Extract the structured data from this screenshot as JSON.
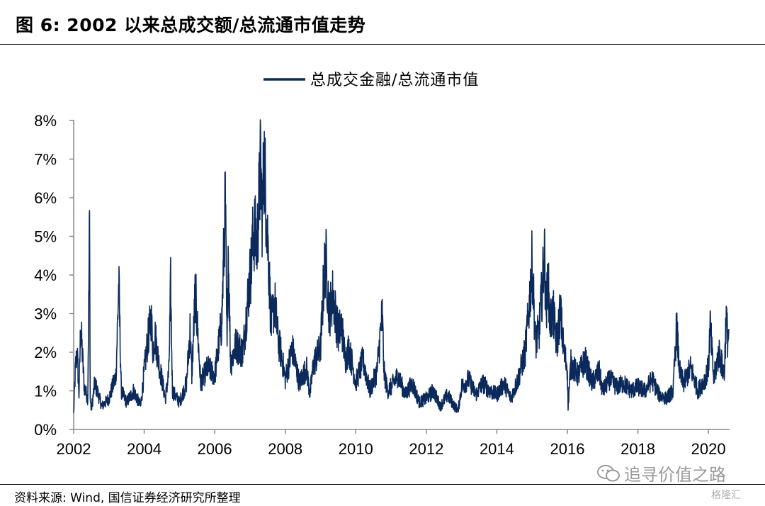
{
  "header": {
    "title": "图  6:  2002 以来总成交额/总流通市值走势"
  },
  "footer": {
    "source": "资料来源: Wind, 国信证券经济研究所整理"
  },
  "watermark": {
    "text": "追寻价值之路",
    "brand": "格隆汇"
  },
  "chart_data": {
    "type": "line",
    "legend_position": "top-center",
    "grid": false,
    "xlim": [
      2002,
      2020.6
    ],
    "ylim": [
      0,
      8
    ],
    "x_ticks": [
      "2002",
      "2004",
      "2006",
      "2008",
      "2010",
      "2012",
      "2014",
      "2016",
      "2018",
      "2020"
    ],
    "y_ticks": [
      "0%",
      "1%",
      "2%",
      "3%",
      "4%",
      "5%",
      "6%",
      "7%",
      "8%"
    ],
    "series": [
      {
        "name": "总成交金融/总流通市值",
        "color": "#0b2a5b",
        "x": [
          2002.0,
          2002.05,
          2002.1,
          2002.15,
          2002.2,
          2002.3,
          2002.4,
          2002.45,
          2002.47,
          2002.5,
          2002.6,
          2002.8,
          2003.0,
          2003.2,
          2003.28,
          2003.35,
          2003.5,
          2003.7,
          2003.9,
          2004.0,
          2004.1,
          2004.2,
          2004.25,
          2004.3,
          2004.4,
          2004.6,
          2004.7,
          2004.75,
          2004.8,
          2005.0,
          2005.2,
          2005.3,
          2005.35,
          2005.45,
          2005.6,
          2005.8,
          2006.0,
          2006.2,
          2006.3,
          2006.35,
          2006.38,
          2006.45,
          2006.6,
          2006.8,
          2006.95,
          2007.05,
          2007.1,
          2007.2,
          2007.3,
          2007.35,
          2007.4,
          2007.5,
          2007.6,
          2007.7,
          2007.8,
          2007.9,
          2008.0,
          2008.2,
          2008.4,
          2008.6,
          2008.7,
          2008.8,
          2009.0,
          2009.1,
          2009.15,
          2009.25,
          2009.35,
          2009.5,
          2009.6,
          2009.7,
          2009.8,
          2009.9,
          2010.0,
          2010.2,
          2010.4,
          2010.6,
          2010.75,
          2010.8,
          2010.9,
          2011.0,
          2011.2,
          2011.4,
          2011.6,
          2011.8,
          2012.0,
          2012.2,
          2012.4,
          2012.6,
          2012.8,
          2012.9,
          2013.0,
          2013.2,
          2013.4,
          2013.6,
          2013.8,
          2014.0,
          2014.2,
          2014.4,
          2014.6,
          2014.8,
          2014.9,
          2015.0,
          2015.1,
          2015.2,
          2015.3,
          2015.35,
          2015.4,
          2015.45,
          2015.5,
          2015.6,
          2015.7,
          2015.8,
          2015.9,
          2016.0,
          2016.02,
          2016.1,
          2016.3,
          2016.5,
          2016.7,
          2016.9,
          2017.0,
          2017.2,
          2017.4,
          2017.6,
          2017.8,
          2018.0,
          2018.2,
          2018.4,
          2018.6,
          2018.8,
          2019.0,
          2019.1,
          2019.15,
          2019.2,
          2019.3,
          2019.5,
          2019.7,
          2019.9,
          2020.0,
          2020.05,
          2020.15,
          2020.3,
          2020.45,
          2020.5,
          2020.55,
          2020.58
        ],
        "values": [
          0.4,
          1.6,
          2.0,
          0.9,
          2.7,
          1.1,
          0.8,
          5.4,
          0.8,
          0.5,
          1.2,
          0.6,
          0.8,
          1.4,
          3.8,
          1.0,
          0.7,
          1.0,
          0.6,
          1.5,
          2.3,
          2.9,
          2.0,
          2.5,
          1.8,
          0.8,
          1.5,
          3.7,
          1.0,
          0.7,
          1.2,
          2.6,
          1.4,
          3.6,
          1.2,
          1.6,
          1.4,
          2.8,
          5.9,
          2.0,
          4.8,
          1.7,
          2.2,
          2.0,
          3.5,
          4.4,
          5.2,
          4.8,
          6.8,
          5.5,
          7.0,
          5.0,
          2.7,
          3.3,
          2.3,
          1.9,
          1.3,
          2.1,
          1.2,
          1.6,
          0.9,
          1.7,
          2.1,
          4.0,
          4.4,
          3.0,
          3.5,
          2.5,
          2.7,
          1.8,
          2.1,
          1.7,
          1.2,
          1.8,
          1.0,
          1.5,
          3.0,
          1.5,
          1.0,
          1.1,
          1.4,
          0.9,
          1.2,
          0.7,
          0.8,
          1.0,
          0.6,
          0.9,
          0.6,
          0.5,
          1.1,
          1.3,
          0.9,
          1.2,
          1.0,
          0.9,
          1.2,
          0.8,
          1.3,
          2.0,
          3.0,
          4.3,
          2.2,
          2.6,
          3.8,
          4.6,
          3.0,
          4.0,
          2.8,
          3.0,
          2.2,
          3.1,
          2.0,
          1.6,
          0.6,
          1.7,
          1.4,
          1.8,
          1.2,
          1.5,
          1.0,
          1.3,
          1.1,
          1.2,
          1.0,
          1.1,
          1.0,
          1.3,
          0.9,
          0.8,
          1.0,
          2.7,
          1.9,
          1.4,
          1.2,
          1.6,
          1.0,
          1.3,
          1.6,
          2.7,
          1.3,
          2.0,
          1.4,
          2.9,
          2.3,
          2.6
        ]
      }
    ]
  }
}
